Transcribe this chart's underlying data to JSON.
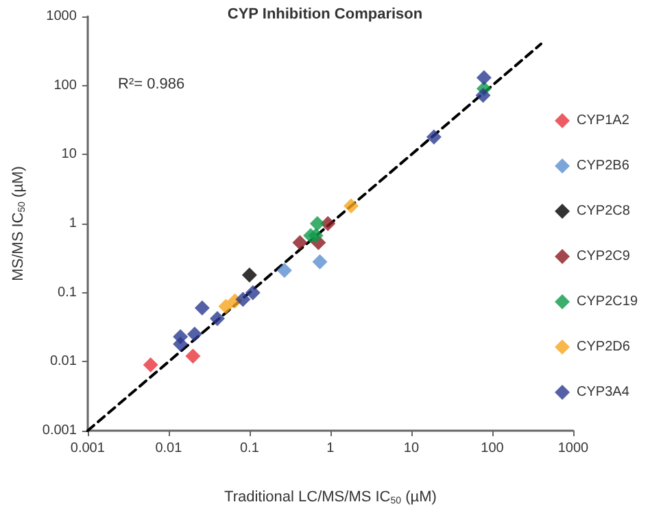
{
  "chart_data": {
    "type": "scatter",
    "title": "CYP Inhibition Comparison",
    "xlabel": "Traditional LC/MS/MS IC$_{50}$ (µM)",
    "ylabel": "MS/MS IC$_{50}$ (µM)",
    "annotations": [
      "R²= 0.986"
    ],
    "log": "xy",
    "xlim": [
      0.001,
      1000
    ],
    "ylim": [
      0.001,
      1000
    ],
    "xticks": [
      0.001,
      0.01,
      0.1,
      1,
      10,
      100,
      1000
    ],
    "yticks": [
      0.001,
      0.01,
      0.1,
      1,
      10,
      100,
      1000
    ],
    "grid": false,
    "legend": "right",
    "marker": "diamond",
    "series": [
      {
        "name": "CYP1A2",
        "color": "#e8333b",
        "x": [
          0.006,
          0.02
        ],
        "values": [
          0.009,
          0.012
        ]
      },
      {
        "name": "CYP2B6",
        "color": "#5b8fd0",
        "x": [
          0.27,
          0.74
        ],
        "values": [
          0.21,
          0.28
        ]
      },
      {
        "name": "CYP2C8",
        "color": "#000000",
        "x": [
          0.1
        ],
        "values": [
          0.18
        ]
      },
      {
        "name": "CYP2C9",
        "color": "#8b1a1f",
        "x": [
          0.42,
          0.71,
          0.77,
          0.93
        ],
        "values": [
          0.53,
          0.53,
          null,
          1.0
        ]
      },
      {
        "name": "CYP2C19",
        "color": "#0e9a48",
        "x": [
          0.57,
          0.66,
          0.69,
          79
        ],
        "values": [
          0.67,
          0.67,
          1.0,
          90
        ]
      },
      {
        "name": "CYP2D6",
        "color": "#f9a51b",
        "x": [
          0.051,
          0.066,
          1.8
        ],
        "values": [
          0.063,
          0.076,
          1.8
        ]
      },
      {
        "name": "CYP3A4",
        "color": "#2b3990",
        "x": [
          0.014,
          0.014,
          0.021,
          0.026,
          0.04,
          0.074,
          0.083,
          0.11,
          19,
          77,
          79
        ],
        "values": [
          0.023,
          0.018,
          0.025,
          0.06,
          0.042,
          null,
          0.08,
          0.1,
          18,
          72,
          130
        ]
      },
      {
        "type": "line",
        "color": "#000000",
        "line_style": "dashed",
        "marker": "none",
        "x": [
          0.001,
          400
        ],
        "values": [
          0.001,
          400
        ]
      }
    ]
  }
}
